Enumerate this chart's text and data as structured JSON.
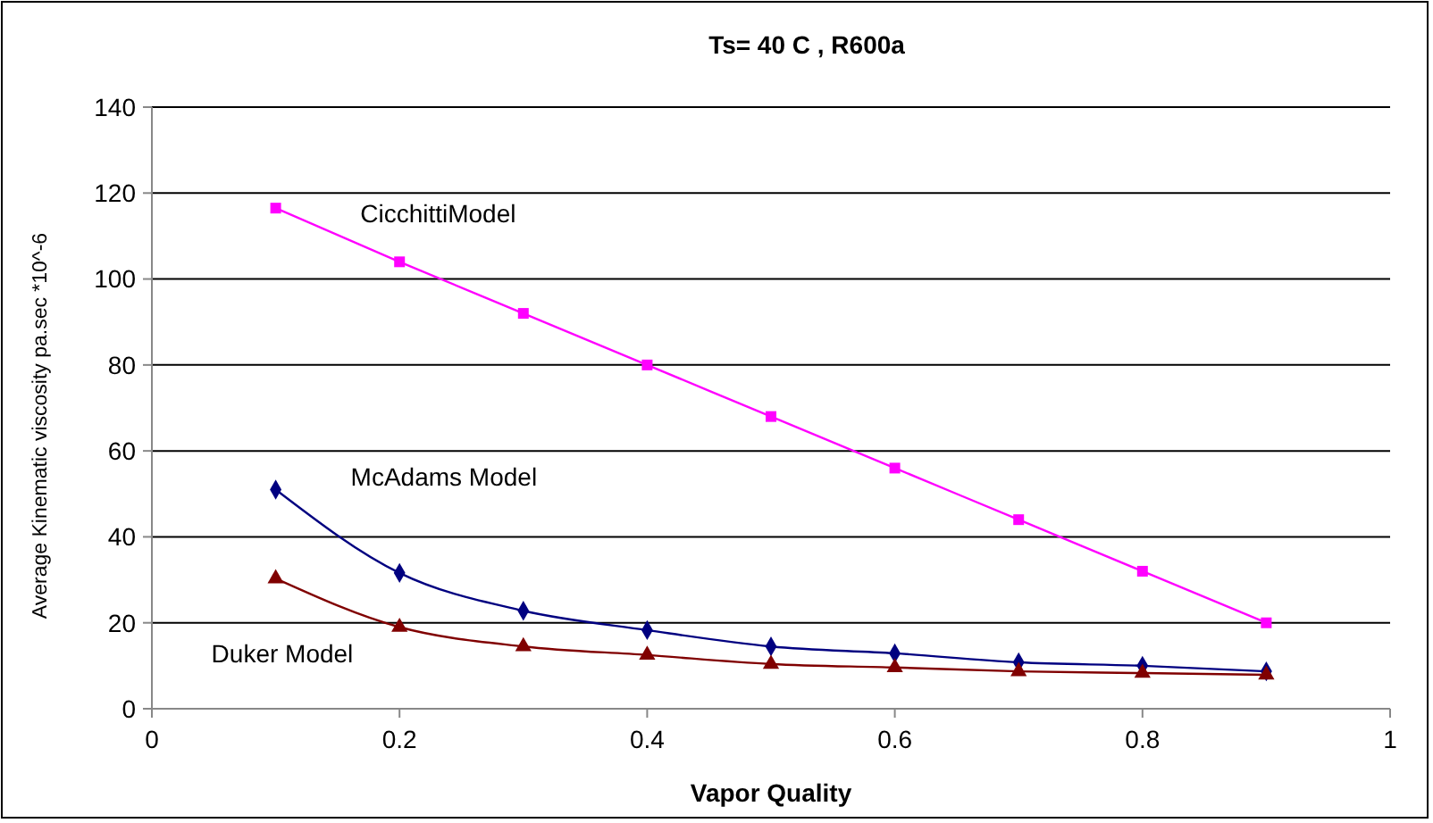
{
  "chart_data": {
    "type": "line",
    "title": "Ts= 40 C , R600a",
    "xlabel": "Vapor Quality",
    "ylabel": "Average Kinematic viscosity pa.sec *10^-6",
    "x": [
      0.1,
      0.2,
      0.3,
      0.4,
      0.5,
      0.6,
      0.7,
      0.8,
      0.9
    ],
    "series": [
      {
        "name": "CicchittiModel",
        "color": "#ff00ff",
        "marker": "square",
        "values": [
          116.5,
          104,
          92,
          80,
          68,
          56,
          44,
          32,
          20
        ]
      },
      {
        "name": "McAdams Model",
        "color": "#000080",
        "marker": "diamond",
        "values": [
          51,
          31.6,
          22.8,
          18.3,
          14.5,
          12.9,
          10.8,
          10,
          8.7
        ]
      },
      {
        "name": "Duker Model",
        "color": "#800000",
        "marker": "triangle",
        "values": [
          30.3,
          19,
          14.5,
          12.5,
          10.4,
          9.6,
          8.7,
          8.3,
          7.9
        ]
      }
    ],
    "xlim": [
      0,
      1
    ],
    "xticks": [
      0,
      0.2,
      0.4,
      0.6,
      0.8,
      1
    ],
    "ylim": [
      0,
      140
    ],
    "yticks": [
      0,
      20,
      40,
      60,
      80,
      100,
      120,
      140
    ],
    "grid": "y",
    "line_style": "solid"
  }
}
